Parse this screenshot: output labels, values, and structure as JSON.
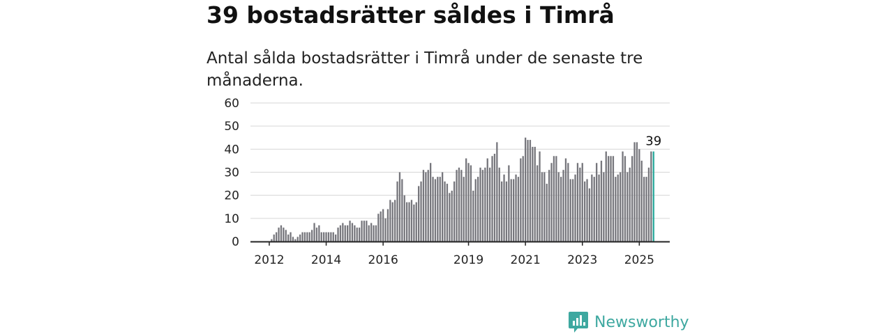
{
  "title": "39 bostadsrätter såldes i Timrå",
  "subtitle": "Antal sålda bostadsrätter i Timrå under de senaste tre månaderna.",
  "brand": {
    "name": "Newsworthy",
    "icon": "newsworthy-logo-icon",
    "color": "#3ea8a0"
  },
  "colors": {
    "bars": "#76767c",
    "highlight": "#2aa99c",
    "grid": "#d6d6d6",
    "axis": "#222222"
  },
  "chart_data": {
    "type": "bar",
    "title": "",
    "xlabel": "",
    "ylabel": "",
    "ylim": [
      0,
      60
    ],
    "yticks": [
      "0",
      "10",
      "20",
      "30",
      "40",
      "50",
      "60"
    ],
    "grid": true,
    "x_tick_labels": [
      {
        "label": "2012",
        "index": 7
      },
      {
        "label": "2014",
        "index": 31
      },
      {
        "label": "2016",
        "index": 55
      },
      {
        "label": "2019",
        "index": 91
      },
      {
        "label": "2021",
        "index": 115
      },
      {
        "label": "2023",
        "index": 139
      },
      {
        "label": "2025",
        "index": 163
      }
    ],
    "highlight_label": "39",
    "values": [
      0,
      0,
      0,
      0,
      0,
      0,
      0,
      0,
      1,
      3,
      4,
      6,
      7,
      6,
      5,
      3,
      4,
      2,
      1,
      2,
      3,
      4,
      4,
      4,
      4,
      5,
      8,
      6,
      7,
      4,
      4,
      4,
      4,
      4,
      4,
      3,
      6,
      7,
      8,
      7,
      7,
      9,
      8,
      7,
      6,
      6,
      9,
      9,
      9,
      7,
      8,
      7,
      7,
      12,
      13,
      14,
      10,
      14,
      18,
      17,
      18,
      26,
      30,
      27,
      20,
      17,
      17,
      18,
      16,
      17,
      24,
      26,
      31,
      30,
      31,
      34,
      28,
      27,
      28,
      28,
      30,
      26,
      25,
      21,
      22,
      26,
      31,
      32,
      31,
      28,
      36,
      34,
      33,
      22,
      27,
      28,
      32,
      31,
      32,
      36,
      32,
      37,
      38,
      43,
      32,
      26,
      29,
      26,
      33,
      27,
      27,
      29,
      28,
      36,
      37,
      45,
      44,
      44,
      41,
      41,
      33,
      39,
      30,
      30,
      25,
      31,
      34,
      37,
      37,
      30,
      28,
      31,
      36,
      34,
      27,
      27,
      29,
      34,
      32,
      34,
      26,
      27,
      23,
      29,
      28,
      34,
      29,
      35,
      30,
      39,
      37,
      37,
      37,
      28,
      29,
      30,
      39,
      37,
      30,
      32,
      37,
      43,
      43,
      40,
      35,
      28,
      28,
      32,
      39,
      39
    ]
  }
}
